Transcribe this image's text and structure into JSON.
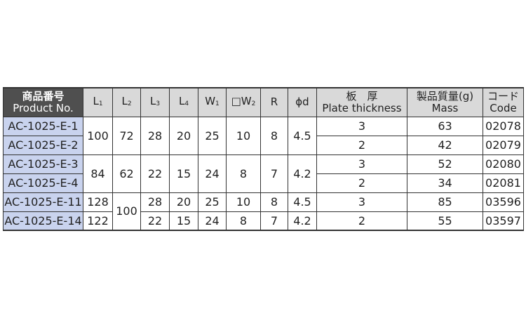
{
  "header": {
    "product": {
      "jp": "商品番号",
      "en": "Product No."
    },
    "columns": [
      {
        "main": "L",
        "sub": "1"
      },
      {
        "main": "L",
        "sub": "2"
      },
      {
        "main": "L",
        "sub": "3"
      },
      {
        "main": "L",
        "sub": "4"
      },
      {
        "main": "W",
        "sub": "1"
      },
      {
        "main": "□W",
        "sub": "2"
      },
      {
        "main": "R",
        "sub": ""
      },
      {
        "main": "ϕd",
        "sub": ""
      }
    ],
    "thickness": {
      "jp": "板　厚",
      "en": "Plate thickness"
    },
    "mass": {
      "jp": "製品質量(g)",
      "en": "Mass"
    },
    "code": {
      "jp": "コード",
      "en": "Code"
    }
  },
  "colors": {
    "header_bg": "#d9d9d9",
    "product_header_bg": "#4f4f4f",
    "product_cell_bg": "#c9d3ee"
  },
  "rows": [
    {
      "product": "AC-1025-E-1",
      "cells": [
        {
          "v": "100",
          "rs": 2
        },
        {
          "v": "72",
          "rs": 2
        },
        {
          "v": "28",
          "rs": 2
        },
        {
          "v": "20",
          "rs": 2
        },
        {
          "v": "25",
          "rs": 2
        },
        {
          "v": "10",
          "rs": 2
        },
        {
          "v": "8",
          "rs": 2
        },
        {
          "v": "4.5",
          "rs": 2
        },
        {
          "v": "3"
        },
        {
          "v": "63"
        },
        {
          "v": "02078"
        }
      ]
    },
    {
      "product": "AC-1025-E-2",
      "cells": [
        {
          "v": "2"
        },
        {
          "v": "42"
        },
        {
          "v": "02079"
        }
      ]
    },
    {
      "product": "AC-1025-E-3",
      "cells": [
        {
          "v": "84",
          "rs": 2
        },
        {
          "v": "62",
          "rs": 2
        },
        {
          "v": "22",
          "rs": 2
        },
        {
          "v": "15",
          "rs": 2
        },
        {
          "v": "24",
          "rs": 2
        },
        {
          "v": "8",
          "rs": 2
        },
        {
          "v": "7",
          "rs": 2
        },
        {
          "v": "4.2",
          "rs": 2
        },
        {
          "v": "3"
        },
        {
          "v": "52"
        },
        {
          "v": "02080"
        }
      ]
    },
    {
      "product": "AC-1025-E-4",
      "cells": [
        {
          "v": "2"
        },
        {
          "v": "34"
        },
        {
          "v": "02081"
        }
      ]
    },
    {
      "product": "AC-1025-E-11",
      "cells": [
        {
          "v": "128"
        },
        {
          "v": "100",
          "rs": 2
        },
        {
          "v": "28"
        },
        {
          "v": "20"
        },
        {
          "v": "25"
        },
        {
          "v": "10"
        },
        {
          "v": "8"
        },
        {
          "v": "4.5"
        },
        {
          "v": "3"
        },
        {
          "v": "85"
        },
        {
          "v": "03596"
        }
      ]
    },
    {
      "product": "AC-1025-E-14",
      "cells": [
        {
          "v": "122"
        },
        {
          "v": "22"
        },
        {
          "v": "15"
        },
        {
          "v": "24"
        },
        {
          "v": "8"
        },
        {
          "v": "7"
        },
        {
          "v": "4.2"
        },
        {
          "v": "2"
        },
        {
          "v": "55"
        },
        {
          "v": "03597"
        }
      ]
    }
  ]
}
